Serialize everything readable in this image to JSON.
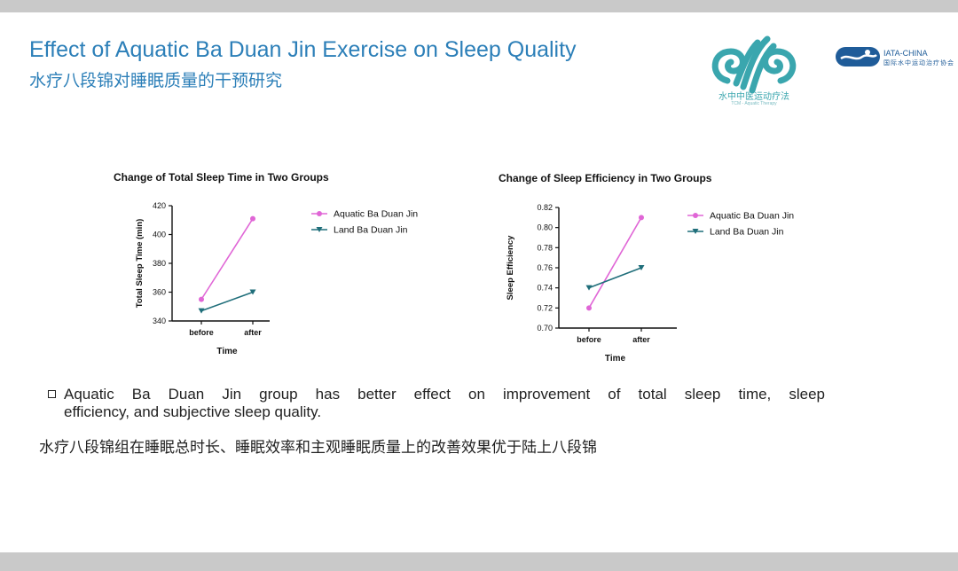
{
  "slide": {
    "title_en": "Effect of Aquatic Ba Duan Jin Exercise on Sleep Quality",
    "title_cn": "水疗八段锦对睡眠质量的干预研究",
    "logo_left": {
      "text": "水中中医运动疗法",
      "sub": "TCM - Aquatic Therapy",
      "icon": "wave-cloud-logo-icon",
      "color": "#3aa6ae"
    },
    "logo_right": {
      "text": "IATA-CHINA",
      "sub": "国际水中运动治疗协会",
      "icon": "swimmer-logo-icon",
      "color": "#1f5c99"
    },
    "bullet_line1": "Aquatic Ba Duan Jin group has better effect on improvement of total sleep time, sleep",
    "bullet_line2": "efficiency, and subjective sleep quality.",
    "note_cn": "水疗八段锦组在睡眠总时长、睡眠效率和主观睡眠质量上的改善效果优于陆上八段锦"
  },
  "chart_data": [
    {
      "type": "line",
      "title": "Change of Total Sleep Time in Two Groups",
      "xlabel": "Time",
      "ylabel": "Total Sleep Time (min)",
      "categories": [
        "before",
        "after"
      ],
      "ylim": [
        340,
        420
      ],
      "yticks": [
        "340",
        "360",
        "380",
        "400",
        "420"
      ],
      "legend_position": "right",
      "series": [
        {
          "name": "Aquatic Ba Duan Jin",
          "values": [
            355,
            411
          ],
          "color": "#e066d6",
          "marker": "circle"
        },
        {
          "name": "Land Ba Duan Jin",
          "values": [
            347,
            360
          ],
          "color": "#1f6e7a",
          "marker": "triangle-down"
        }
      ]
    },
    {
      "type": "line",
      "title": "Change of Sleep Efficiency in Two Groups",
      "xlabel": "Time",
      "ylabel": "Sleep Efficiency",
      "categories": [
        "before",
        "after"
      ],
      "ylim": [
        0.7,
        0.82
      ],
      "yticks": [
        "0.70",
        "0.72",
        "0.74",
        "0.76",
        "0.78",
        "0.80",
        "0.82"
      ],
      "legend_position": "right",
      "series": [
        {
          "name": "Aquatic Ba Duan Jin",
          "values": [
            0.72,
            0.81
          ],
          "color": "#e066d6",
          "marker": "circle"
        },
        {
          "name": "Land Ba Duan Jin",
          "values": [
            0.74,
            0.76
          ],
          "color": "#1f6e7a",
          "marker": "triangle-down"
        }
      ]
    }
  ]
}
